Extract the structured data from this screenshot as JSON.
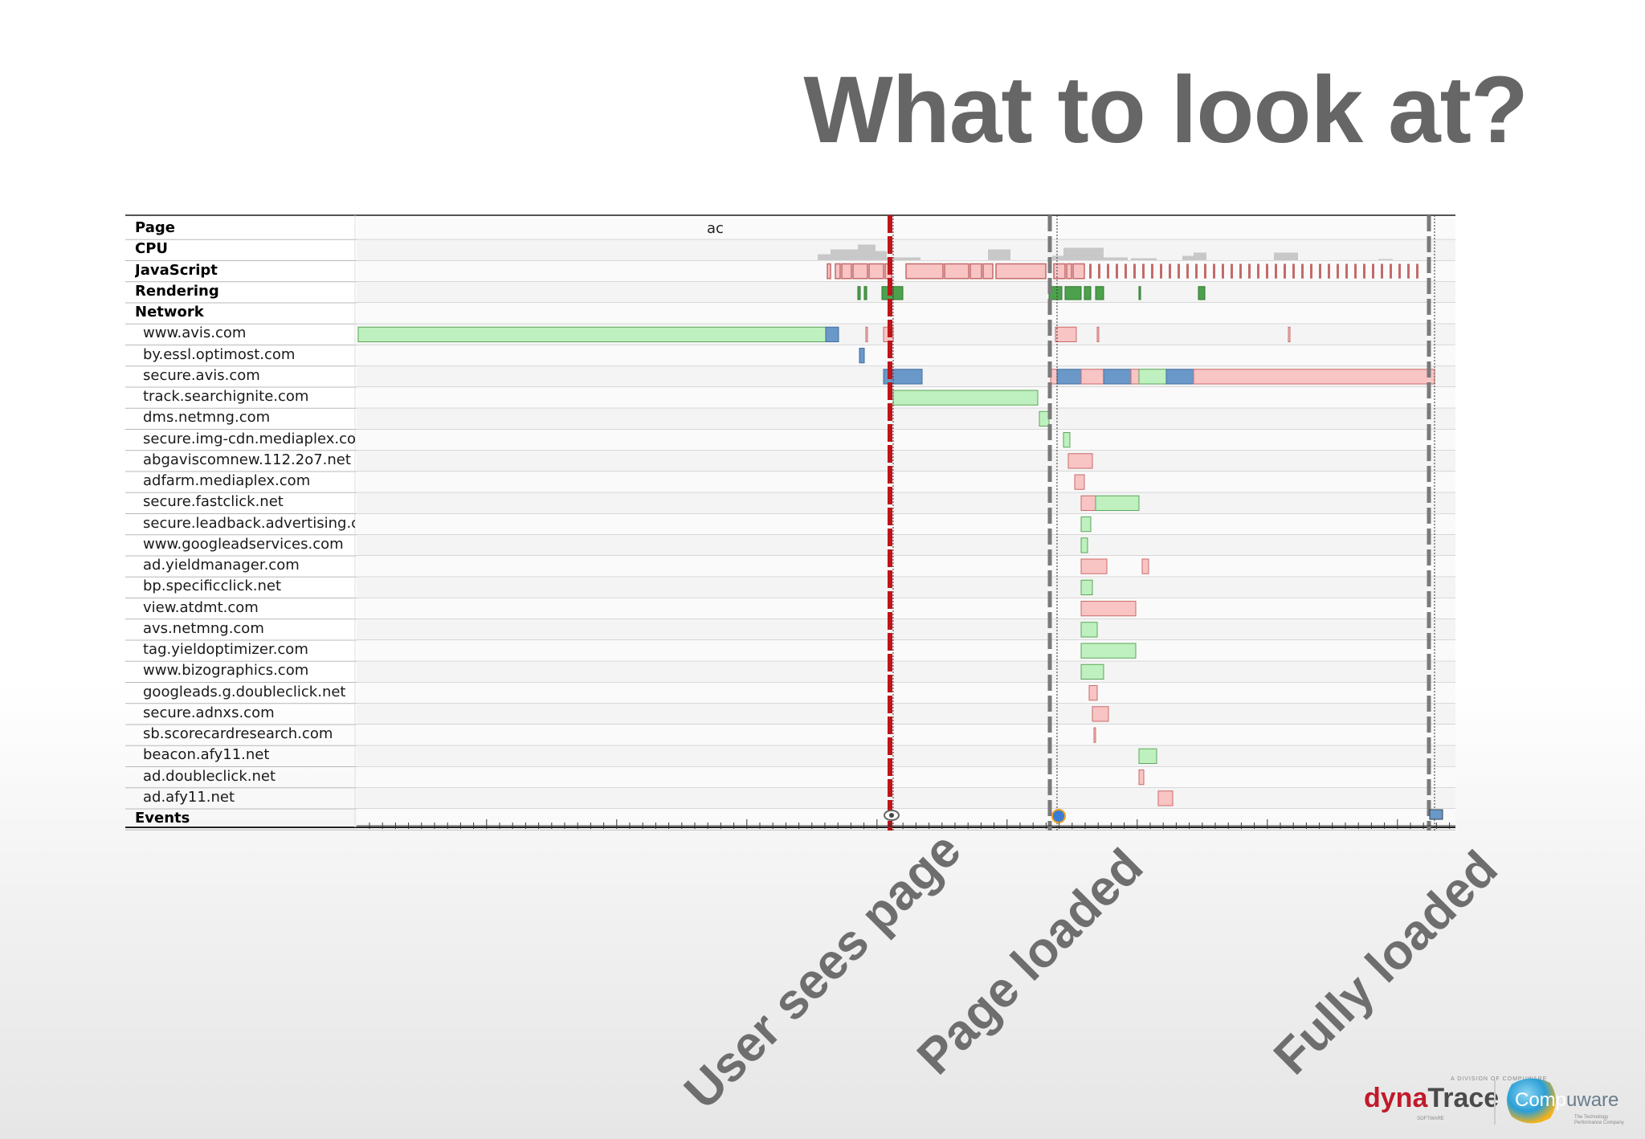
{
  "slide": {
    "title": "What to look at?"
  },
  "timeline": {
    "page_row_text": "ac",
    "categories": [
      {
        "label": "Page"
      },
      {
        "label": "CPU"
      },
      {
        "label": "JavaScript"
      },
      {
        "label": "Rendering"
      },
      {
        "label": "Network"
      }
    ],
    "hosts": [
      "www.avis.com",
      "by.essl.optimost.com",
      "secure.avis.com",
      "track.searchignite.com",
      "dms.netmng.com",
      "secure.img-cdn.mediaplex.com",
      "abgaviscomnew.112.2o7.net",
      "adfarm.mediaplex.com",
      "secure.fastclick.net",
      "secure.leadback.advertising.com",
      "www.googleadservices.com",
      "ad.yieldmanager.com",
      "bp.specificclick.net",
      "view.atdmt.com",
      "avs.netmng.com",
      "tag.yieldoptimizer.com",
      "www.bizographics.com",
      "googleads.g.doubleclick.net",
      "secure.adnxs.com",
      "sb.scorecardresearch.com",
      "beacon.afy11.net",
      "ad.doubleclick.net",
      "ad.afy11.net"
    ],
    "events_label": "Events"
  },
  "milestones": [
    {
      "label": "User sees page"
    },
    {
      "label": "Page loaded"
    },
    {
      "label": "Fully loaded"
    }
  ],
  "colors": {
    "title": "#666666",
    "marker_user": "#c0131a",
    "marker_page": "#7a7a7a",
    "bar_green": "#bff0bf",
    "bar_green_border": "#5aa85a",
    "bar_pink": "#f8c4c4",
    "bar_pink_border": "#cc6a6a",
    "bar_blue": "#6a98c8",
    "js_red": "#c46a6a",
    "render_green": "#4da14d",
    "cpu_gray": "#c8c8c8",
    "milestone_text": "#6e6e6e"
  },
  "logo": {
    "dynatrace_top": "A DIVISION OF COMPUWARE",
    "dynatrace_dyna": "dyna",
    "dynatrace_trace": "Trace",
    "dynatrace_sub": "SOFTWARE",
    "compuware_a": "Comp",
    "compuware_b": "uware",
    "compuware_tag": "The Technology Performance Company"
  }
}
